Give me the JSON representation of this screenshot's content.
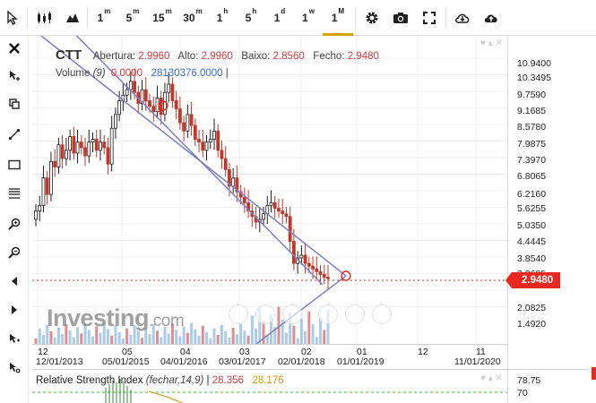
{
  "toolbar": {
    "timeframes": [
      "1m",
      "5m",
      "15m",
      "30m",
      "1h",
      "5h",
      "1d",
      "1w",
      "1M"
    ],
    "active_timeframe": "1M"
  },
  "legend": {
    "symbol": "CTT",
    "open_label": "Abertura:",
    "open_value": "2.9960",
    "high_label": "Alto:",
    "high_value": "2.9960",
    "low_label": "Baixo:",
    "low_value": "2.8560",
    "close_label": "Fecho:",
    "close_value": "2.9480",
    "volume_label": "Volume",
    "volume_param": "(9)",
    "volume_value_1": "0.0000",
    "volume_value_2": "28130376.0000"
  },
  "price_axis": {
    "labels": [
      "10.9400",
      "10.3495",
      "9.7590",
      "9.1685",
      "8.5780",
      "7.9875",
      "7.3970",
      "6.8065",
      "6.2160",
      "5.6255",
      "5.0350",
      "4.4445",
      "3.8540",
      "3.2635",
      "2.0825",
      "1.4920"
    ],
    "current_price": "2.9480"
  },
  "x_axis": {
    "top_labels": [
      "12",
      "05",
      "04",
      "03",
      "02",
      "01",
      "12",
      "11"
    ],
    "bottom_labels": [
      "12/01/2013",
      "05/01/2015",
      "04/01/2016",
      "03/01/2017",
      "02/01/2018",
      "01/01/2019",
      "11/01/2020"
    ]
  },
  "watermark": {
    "brand": "Investing",
    "suffix": ".com"
  },
  "rsi": {
    "name": "Relative Strength Index",
    "params": "(fechar,14,9)",
    "value_1": "28.356",
    "value_2": "28.176",
    "axis_labels": [
      "78.75",
      "70"
    ]
  },
  "colors": {
    "up_candle": "#1f1f1f",
    "down_candle": "#c0392b",
    "trendline": "#7d7fc6",
    "current_price": "#e8271e",
    "active_tab": "#d8a400"
  },
  "icons": {
    "toolbar": [
      "cursor-icon",
      "candlestick-icon",
      "mountain-chart-icon",
      "settings-gear-icon",
      "camera-icon",
      "fullscreen-icon",
      "download-icon",
      "upload-icon"
    ],
    "sidebar": [
      "close-icon",
      "crosshair-cursor-icon",
      "copy-icon",
      "trendline-icon",
      "rectangle-icon",
      "fibonacci-icon",
      "zoom-in-icon",
      "zoom-out-icon",
      "scroll-left-icon",
      "scroll-right-icon",
      "magnet-icon",
      "lock-icon"
    ]
  }
}
